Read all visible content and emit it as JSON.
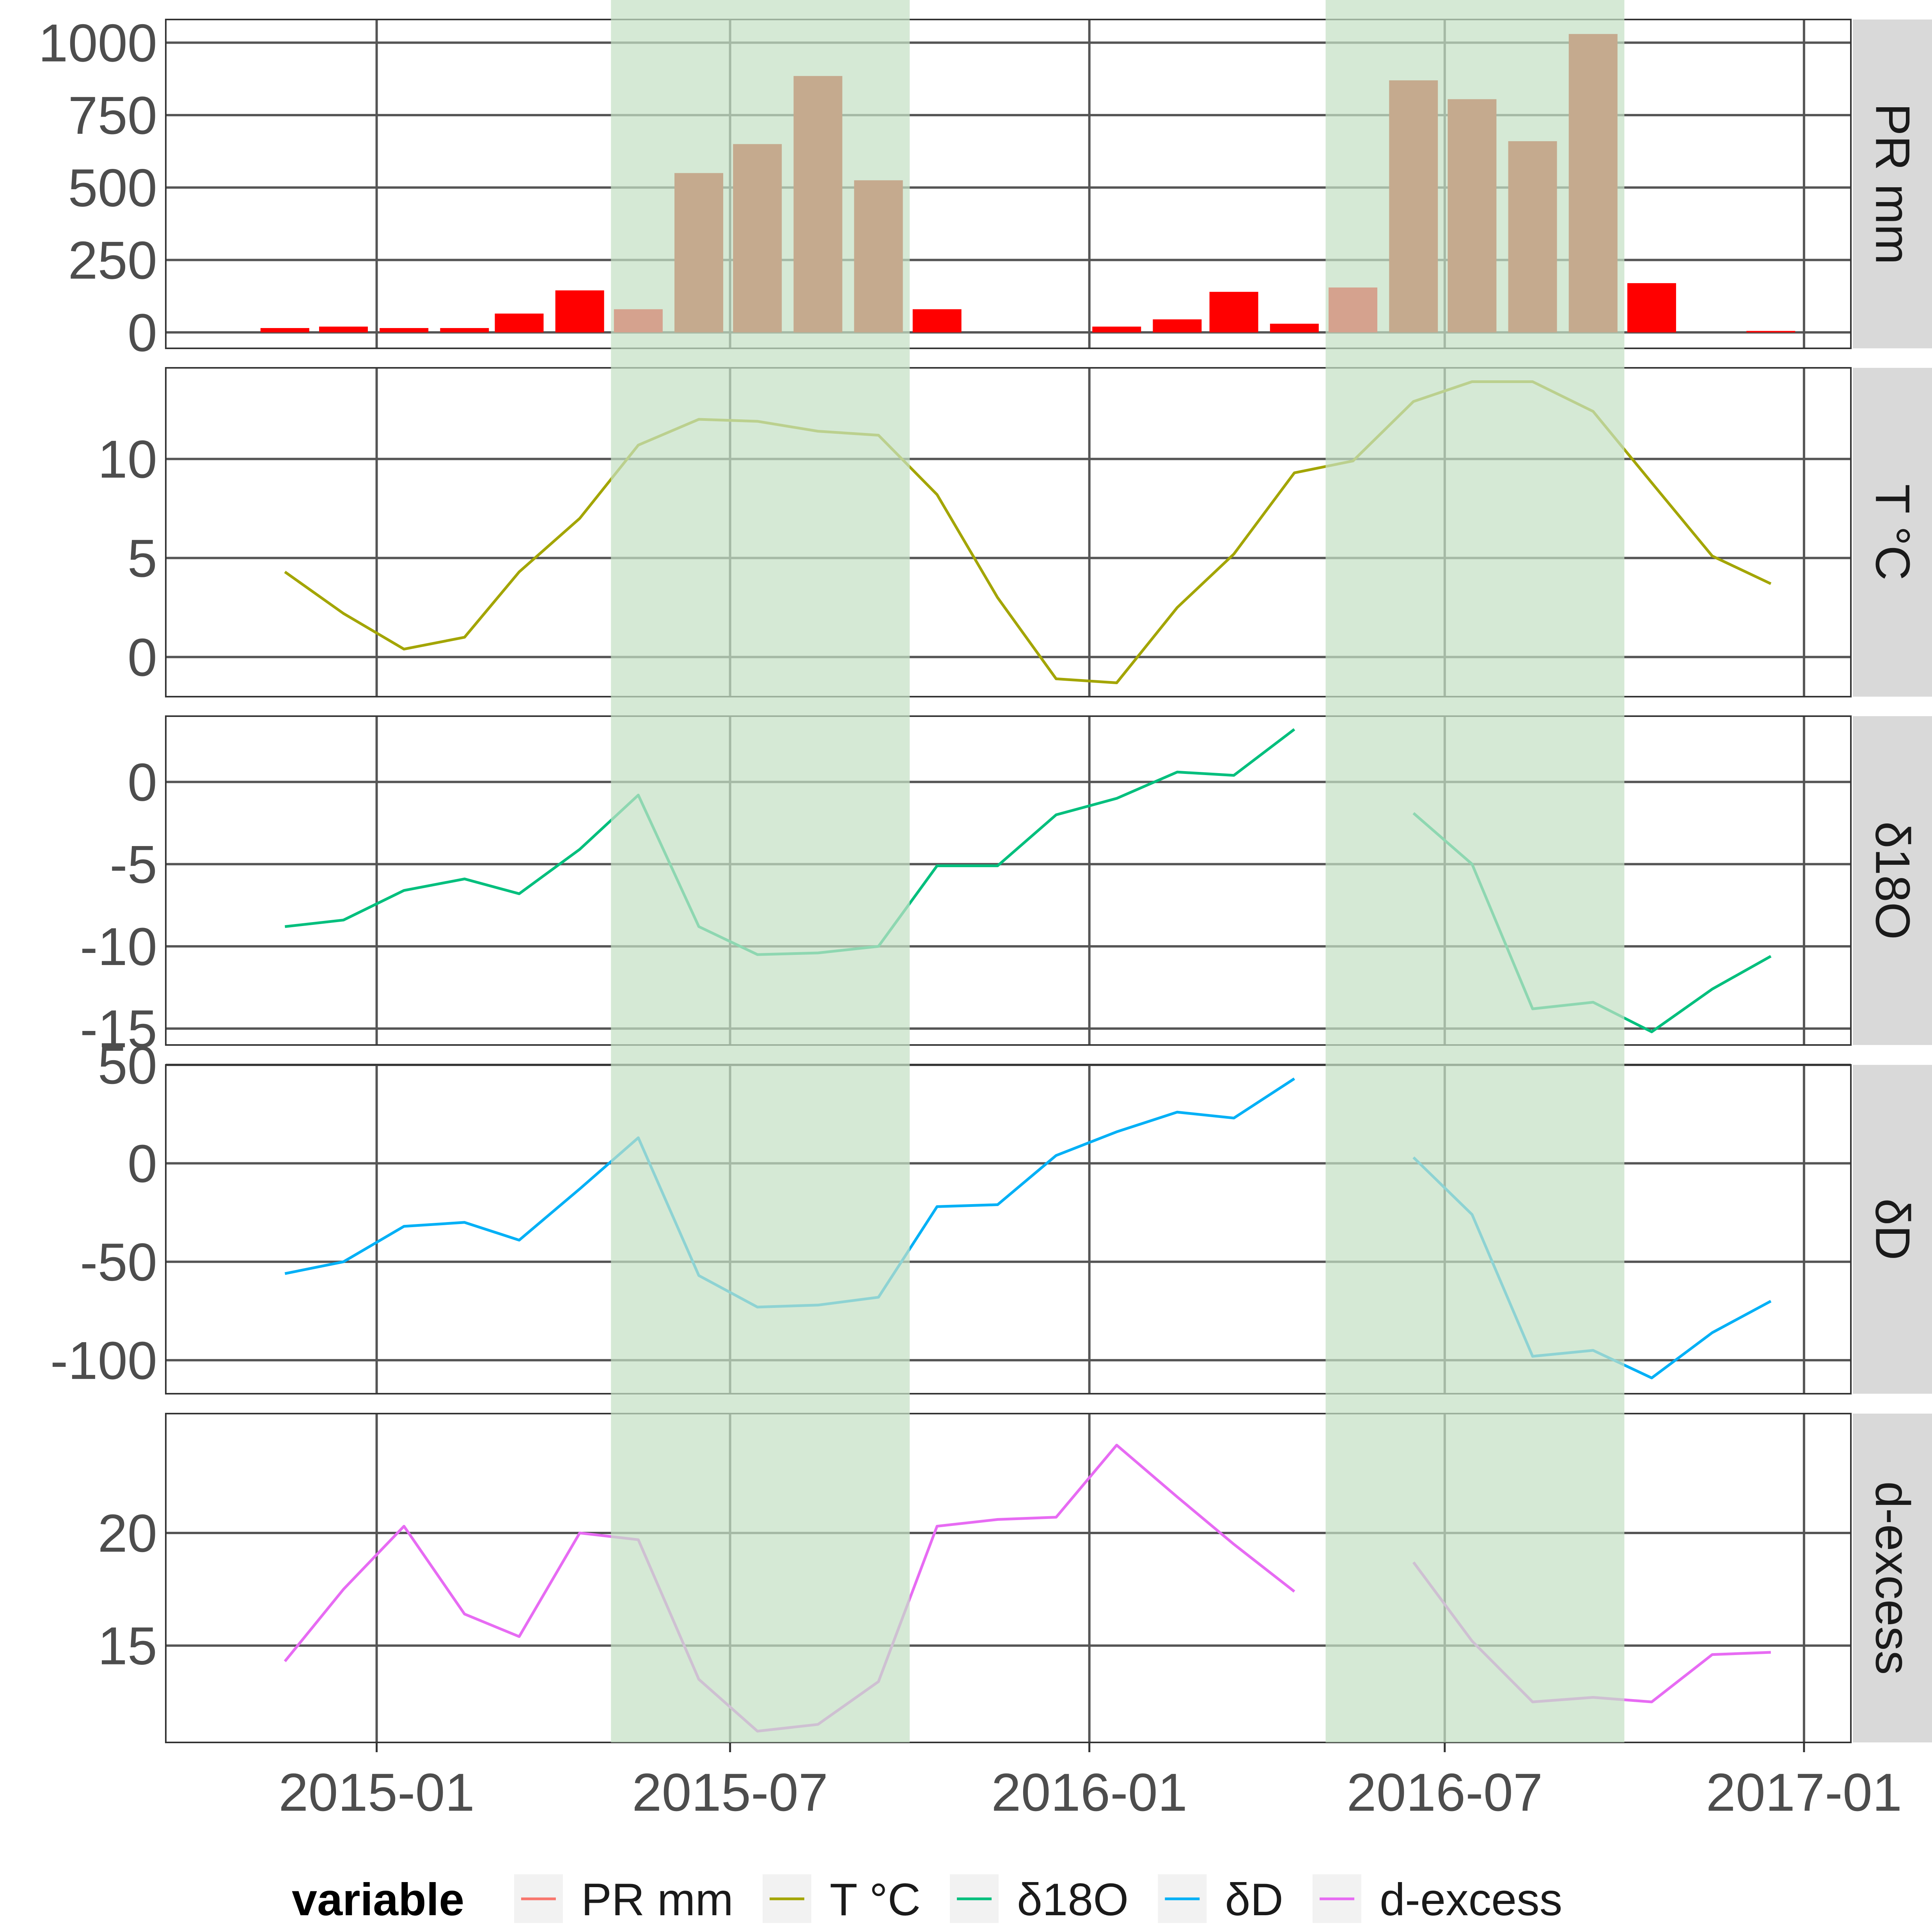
{
  "chart_data": {
    "type": "faceted-timeseries",
    "x_axis": {
      "range": [
        "2014-09-15",
        "2017-01-25"
      ],
      "ticks": [
        "2015-01",
        "2015-07",
        "2016-01",
        "2016-07",
        "2017-01"
      ]
    },
    "highlight_periods": [
      {
        "start": "2015-05",
        "end": "2015-09",
        "color": "#c5e1c5"
      },
      {
        "start": "2016-05",
        "end": "2016-09",
        "color": "#c5e1c5"
      }
    ],
    "panels": [
      {
        "strip_label": "PR mm",
        "type": "bar",
        "y_range": [
          -55,
          1080
        ],
        "y_ticks": [
          0,
          250,
          500,
          750,
          1000
        ],
        "colors": {
          "in_period": "#c41e00",
          "out_period": "#ff0000"
        },
        "dates": [
          "2014-11",
          "2014-12",
          "2015-01",
          "2015-02",
          "2015-03",
          "2015-04",
          "2015-05",
          "2015-06",
          "2015-07",
          "2015-08",
          "2015-09",
          "2015-10",
          "2016-01",
          "2016-02",
          "2016-03",
          "2016-04",
          "2016-05",
          "2016-06",
          "2016-07",
          "2016-08",
          "2016-09",
          "2016-10",
          "2016-12"
        ],
        "values": [
          15,
          20,
          15,
          15,
          65,
          145,
          80,
          550,
          650,
          885,
          525,
          80,
          20,
          45,
          140,
          30,
          155,
          870,
          805,
          660,
          1030,
          170,
          5
        ],
        "in_period": [
          false,
          false,
          false,
          false,
          false,
          false,
          false,
          true,
          true,
          true,
          true,
          false,
          false,
          false,
          false,
          false,
          false,
          true,
          true,
          true,
          true,
          false,
          false
        ]
      },
      {
        "strip_label": "T °C",
        "type": "line",
        "color": "#a3a500",
        "y_range": [
          -2,
          14.6
        ],
        "y_ticks": [
          0,
          5,
          10
        ],
        "dates": [
          "2014-11",
          "2014-12",
          "2015-01",
          "2015-02",
          "2015-03",
          "2015-04",
          "2015-05",
          "2015-06",
          "2015-07",
          "2015-08",
          "2015-09",
          "2015-10",
          "2015-11",
          "2015-12",
          "2016-01",
          "2016-02",
          "2016-03",
          "2016-04",
          "2016-05",
          "2016-06",
          "2016-07",
          "2016-08",
          "2016-09",
          "2016-10",
          "2016-11",
          "2016-12"
        ],
        "values": [
          4.3,
          2.2,
          0.4,
          1.0,
          4.3,
          7.0,
          10.7,
          12.0,
          11.9,
          11.4,
          11.2,
          8.2,
          3.0,
          -1.1,
          -1.3,
          2.5,
          5.2,
          9.3,
          9.9,
          12.9,
          13.9,
          13.9,
          12.4,
          8.8,
          5.1,
          3.7
        ]
      },
      {
        "strip_label": "δ18O",
        "type": "line",
        "color": "#00bf7d",
        "y_range": [
          -16,
          4
        ],
        "y_ticks": [
          -15,
          -10,
          -5,
          0
        ],
        "dates": [
          "2014-11",
          "2014-12",
          "2015-01",
          "2015-02",
          "2015-03",
          "2015-04",
          "2015-05",
          "2015-06",
          "2015-07",
          "2015-08",
          "2015-09",
          "2015-10",
          "2015-11",
          "2015-12",
          "2016-01",
          "2016-02",
          "2016-03",
          "2016-04",
          "2016-06",
          "2016-07",
          "2016-08",
          "2016-09",
          "2016-10",
          "2016-11",
          "2016-12"
        ],
        "values": [
          -8.8,
          -8.4,
          -6.6,
          -5.9,
          -6.8,
          -4.1,
          -0.8,
          -8.8,
          -10.5,
          -10.4,
          -10.0,
          -5.1,
          -5.1,
          -2.0,
          -1.0,
          0.6,
          0.4,
          3.2,
          -1.9,
          -5.0,
          -13.8,
          -13.4,
          -15.2,
          -12.6,
          -10.6
        ],
        "segments": [
          [
            0,
            17
          ],
          [
            18,
            24
          ]
        ]
      },
      {
        "strip_label": "δD",
        "type": "line",
        "color": "#00b0f6",
        "y_range": [
          -117,
          50
        ],
        "y_ticks": [
          -100,
          -50,
          0,
          50
        ],
        "dates": [
          "2014-11",
          "2014-12",
          "2015-01",
          "2015-02",
          "2015-03",
          "2015-04",
          "2015-05",
          "2015-06",
          "2015-07",
          "2015-08",
          "2015-09",
          "2015-10",
          "2015-11",
          "2015-12",
          "2016-01",
          "2016-02",
          "2016-03",
          "2016-04",
          "2016-06",
          "2016-07",
          "2016-08",
          "2016-09",
          "2016-10",
          "2016-11",
          "2016-12"
        ],
        "values": [
          -56,
          -50,
          -32,
          -30,
          -39,
          -13,
          13,
          -57,
          -73,
          -72,
          -68,
          -22,
          -21,
          4,
          16,
          26,
          23,
          43,
          3,
          -26,
          -98,
          -95,
          -109,
          -86,
          -70
        ],
        "segments": [
          [
            0,
            17
          ],
          [
            18,
            24
          ]
        ]
      },
      {
        "strip_label": "d-excess",
        "type": "line",
        "color": "#e76bf3",
        "y_range": [
          10.7,
          25.3
        ],
        "y_ticks": [
          15,
          20
        ],
        "dates": [
          "2014-11",
          "2014-12",
          "2015-01",
          "2015-02",
          "2015-03",
          "2015-04",
          "2015-05",
          "2015-06",
          "2015-07",
          "2015-08",
          "2015-09",
          "2015-10",
          "2015-11",
          "2015-12",
          "2016-01",
          "2016-02",
          "2016-03",
          "2016-04",
          "2016-06",
          "2016-07",
          "2016-08",
          "2016-09",
          "2016-10",
          "2016-11",
          "2016-12"
        ],
        "values": [
          14.3,
          17.5,
          20.3,
          16.4,
          15.4,
          20.0,
          19.7,
          13.5,
          11.2,
          11.5,
          13.4,
          20.3,
          20.6,
          20.7,
          23.9,
          21.6,
          19.5,
          17.4,
          18.7,
          15.2,
          12.5,
          12.7,
          12.5,
          14.6,
          14.7
        ],
        "segments": [
          [
            0,
            17
          ],
          [
            18,
            24
          ]
        ]
      }
    ],
    "legend": {
      "title": "variable",
      "position": "bottom",
      "items": [
        {
          "label": "PR mm",
          "color": "#f8766d"
        },
        {
          "label": "T °C",
          "color": "#a3a500"
        },
        {
          "label": "δ18O",
          "color": "#00bf7d"
        },
        {
          "label": "δD",
          "color": "#00b0f6"
        },
        {
          "label": "d-excess",
          "color": "#e76bf3"
        }
      ]
    }
  }
}
